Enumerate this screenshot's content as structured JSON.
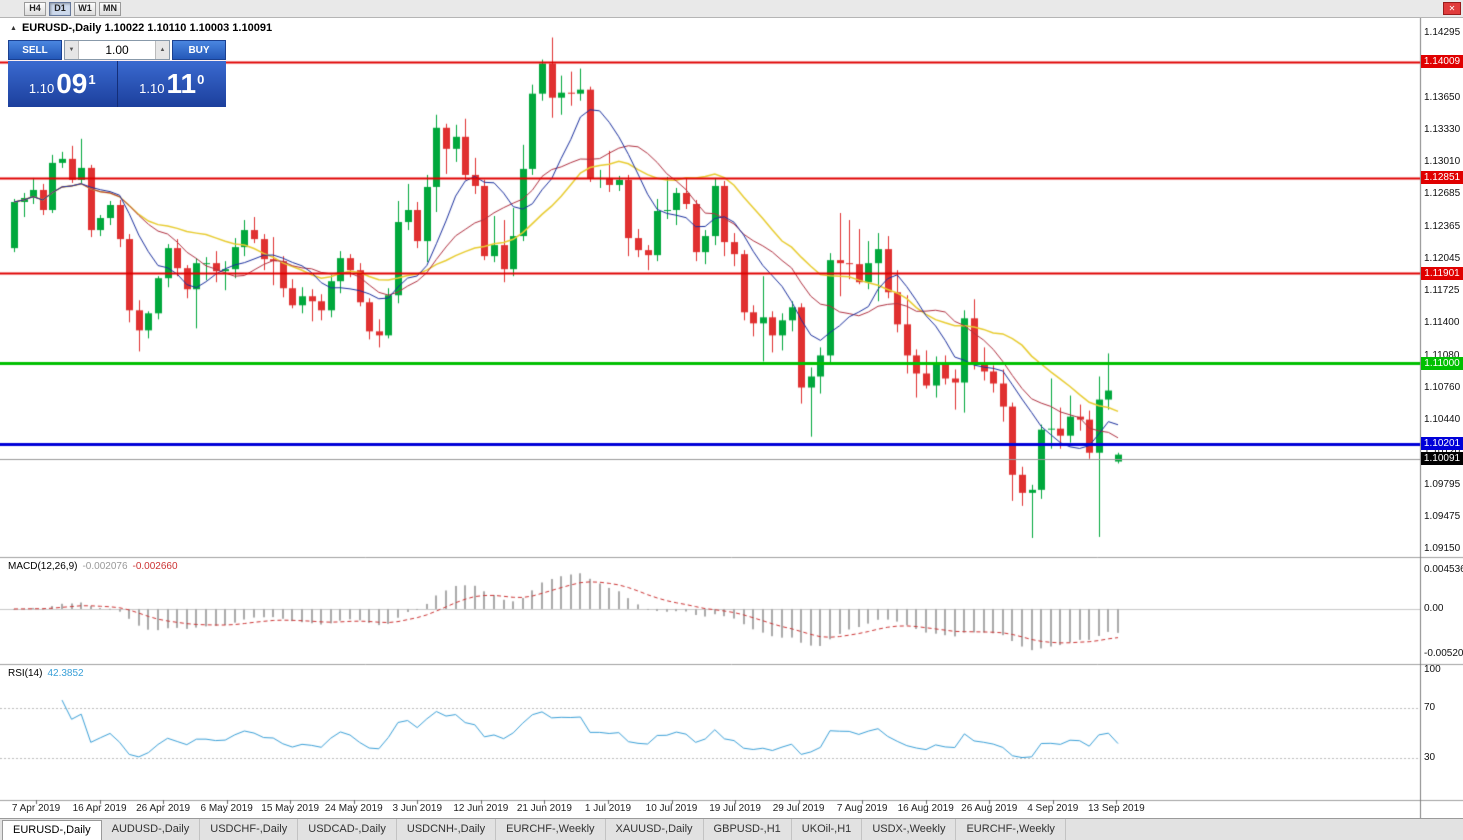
{
  "toolbar": {
    "timeframes": [
      {
        "label": "H4",
        "active": false
      },
      {
        "label": "D1",
        "active": true
      },
      {
        "label": "W1",
        "active": false
      },
      {
        "label": "MN",
        "active": false
      }
    ]
  },
  "icons": {
    "close": "✕",
    "collapse": "▲",
    "spin_up": "▲",
    "spin_down": "▼"
  },
  "chart": {
    "title_text": "EURUSD-,Daily 1.10022 1.10110 1.10003 1.10091"
  },
  "one_click": {
    "sell_label": "SELL",
    "buy_label": "BUY",
    "volume": "1.00",
    "sell_prefix": "1.10",
    "sell_big": "09",
    "sell_sup": "1",
    "buy_prefix": "1.10",
    "buy_big": "11",
    "buy_sup": "0"
  },
  "price_scale": [
    "1.14295",
    "1.13985",
    "1.13650",
    "1.13330",
    "1.13010",
    "1.12685",
    "1.12365",
    "1.12045",
    "1.11725",
    "1.11400",
    "1.11080",
    "1.10760",
    "1.10440",
    "1.10120",
    "1.09795",
    "1.09475",
    "1.09150"
  ],
  "hlines": [
    {
      "label": "1.14009",
      "price": 1.14009,
      "color": "#e00000",
      "width": 2
    },
    {
      "label": "1.12851",
      "price": 1.12851,
      "color": "#e00000",
      "width": 2
    },
    {
      "label": "1.11901",
      "price": 1.11901,
      "color": "#e00000",
      "width": 2
    },
    {
      "label": "1.11000",
      "price": 1.11,
      "color": "#00c000",
      "width": 3
    },
    {
      "label": "1.10201",
      "price": 1.10201,
      "color": "#0000d8",
      "width": 3
    }
  ],
  "current_price": {
    "label": "1.10091",
    "price": 1.10091
  },
  "macd": {
    "label": "MACD(12,26,9)",
    "value_main": "-0.002076",
    "value_signal": "-0.002660",
    "scale": [
      {
        "label": "0.004536",
        "value": 0.004536
      },
      {
        "label": "0.00",
        "value": 0
      },
      {
        "label": "-0.005205",
        "value": -0.005205
      }
    ]
  },
  "rsi": {
    "label": "RSI(14)",
    "value": "42.3852",
    "scale": [
      {
        "label": "100",
        "value": 100
      },
      {
        "label": "70",
        "value": 70
      },
      {
        "label": "30",
        "value": 30
      }
    ],
    "levels": [
      70,
      30
    ]
  },
  "dates": [
    "7 Apr 2019",
    "16 Apr 2019",
    "26 Apr 2019",
    "6 May 2019",
    "15 May 2019",
    "24 May 2019",
    "3 Jun 2019",
    "12 Jun 2019",
    "21 Jun 2019",
    "1 Jul 2019",
    "10 Jul 2019",
    "19 Jul 2019",
    "29 Jul 2019",
    "7 Aug 2019",
    "16 Aug 2019",
    "26 Aug 2019",
    "4 Sep 2019",
    "13 Sep 2019"
  ],
  "tabs": [
    {
      "label": "EURUSD-,Daily",
      "active": true
    },
    {
      "label": "AUDUSD-,Daily",
      "active": false
    },
    {
      "label": "USDCHF-,Daily",
      "active": false
    },
    {
      "label": "USDCAD-,Daily",
      "active": false
    },
    {
      "label": "USDCNH-,Daily",
      "active": false
    },
    {
      "label": "EURCHF-,Weekly",
      "active": false
    },
    {
      "label": "XAUUSD-,Daily",
      "active": false
    },
    {
      "label": "GBPUSD-,H1",
      "active": false
    },
    {
      "label": "UKOil-,H1",
      "active": false
    },
    {
      "label": "USDX-,Weekly",
      "active": false
    },
    {
      "label": "EURCHF-,Weekly",
      "active": false
    }
  ],
  "colors": {
    "bull": "#00a83c",
    "bear": "#e03030",
    "ma_fast": "#1a2f9e",
    "ma_mid": "#b03040",
    "ma_slow": "#e8cc30",
    "macd_hist": "#aaaaaa",
    "macd_signal": "#cc3333",
    "rsi_line": "#3aa0d8",
    "panel_blue": "#2b5bb8",
    "current_line": "#999999",
    "current_badge": "#000000"
  },
  "chart_data": {
    "type": "candlestick",
    "symbol": "EURUSD-",
    "timeframe": "Daily",
    "y_range": [
      1.0915,
      1.14295
    ],
    "ma_periods": [
      8,
      13,
      21
    ],
    "indicators": [
      "MACD(12,26,9)",
      "RSI(14)"
    ],
    "ohlc": [
      [
        1.1215,
        1.1264,
        1.1211,
        1.1261
      ],
      [
        1.1261,
        1.127,
        1.1246,
        1.1265
      ],
      [
        1.1265,
        1.1285,
        1.1259,
        1.1273
      ],
      [
        1.1273,
        1.1279,
        1.1248,
        1.1253
      ],
      [
        1.1253,
        1.1308,
        1.125,
        1.13
      ],
      [
        1.13,
        1.1311,
        1.1295,
        1.1304
      ],
      [
        1.1304,
        1.1317,
        1.128,
        1.1283
      ],
      [
        1.1283,
        1.1324,
        1.128,
        1.1295
      ],
      [
        1.1295,
        1.1298,
        1.1226,
        1.1233
      ],
      [
        1.1233,
        1.1248,
        1.1227,
        1.1245
      ],
      [
        1.1245,
        1.1262,
        1.1238,
        1.1258
      ],
      [
        1.1258,
        1.1263,
        1.1216,
        1.1224
      ],
      [
        1.1224,
        1.1229,
        1.1141,
        1.1153
      ],
      [
        1.1153,
        1.1163,
        1.1112,
        1.1133
      ],
      [
        1.1133,
        1.1152,
        1.1125,
        1.115
      ],
      [
        1.115,
        1.1187,
        1.1144,
        1.1185
      ],
      [
        1.1185,
        1.1219,
        1.1176,
        1.1215
      ],
      [
        1.1215,
        1.1224,
        1.1187,
        1.1195
      ],
      [
        1.1195,
        1.1198,
        1.1165,
        1.1174
      ],
      [
        1.1174,
        1.1205,
        1.1135,
        1.12
      ],
      [
        1.12,
        1.1206,
        1.1183,
        1.12
      ],
      [
        1.12,
        1.1212,
        1.1181,
        1.1192
      ],
      [
        1.1192,
        1.1202,
        1.1173,
        1.1194
      ],
      [
        1.1194,
        1.1225,
        1.1185,
        1.1216
      ],
      [
        1.1216,
        1.1243,
        1.1207,
        1.1233
      ],
      [
        1.1233,
        1.1246,
        1.122,
        1.1224
      ],
      [
        1.1224,
        1.1229,
        1.1193,
        1.1204
      ],
      [
        1.1204,
        1.1226,
        1.1178,
        1.1202
      ],
      [
        1.1202,
        1.1207,
        1.1166,
        1.1175
      ],
      [
        1.1175,
        1.1184,
        1.1155,
        1.1158
      ],
      [
        1.1158,
        1.1176,
        1.115,
        1.1167
      ],
      [
        1.1167,
        1.1174,
        1.1142,
        1.1162
      ],
      [
        1.1162,
        1.1169,
        1.1143,
        1.1153
      ],
      [
        1.1153,
        1.1188,
        1.1146,
        1.1182
      ],
      [
        1.1182,
        1.1212,
        1.117,
        1.1205
      ],
      [
        1.1205,
        1.1209,
        1.1186,
        1.1193
      ],
      [
        1.1193,
        1.12,
        1.1157,
        1.1161
      ],
      [
        1.1161,
        1.1165,
        1.1124,
        1.1132
      ],
      [
        1.1132,
        1.1144,
        1.1116,
        1.1128
      ],
      [
        1.1128,
        1.1175,
        1.1125,
        1.1168
      ],
      [
        1.1168,
        1.1262,
        1.116,
        1.1241
      ],
      [
        1.1241,
        1.1279,
        1.1233,
        1.1253
      ],
      [
        1.1253,
        1.1261,
        1.1215,
        1.1222
      ],
      [
        1.1222,
        1.1288,
        1.1201,
        1.1276
      ],
      [
        1.1276,
        1.1348,
        1.1251,
        1.1335
      ],
      [
        1.1335,
        1.1339,
        1.1289,
        1.1314
      ],
      [
        1.1314,
        1.1338,
        1.1301,
        1.1326
      ],
      [
        1.1326,
        1.1344,
        1.1283,
        1.1288
      ],
      [
        1.1288,
        1.1305,
        1.1269,
        1.1277
      ],
      [
        1.1277,
        1.1283,
        1.1203,
        1.1207
      ],
      [
        1.1207,
        1.1247,
        1.1201,
        1.1218
      ],
      [
        1.1218,
        1.1243,
        1.1181,
        1.1194
      ],
      [
        1.1194,
        1.1255,
        1.1187,
        1.1227
      ],
      [
        1.1227,
        1.1318,
        1.1222,
        1.1294
      ],
      [
        1.1294,
        1.1378,
        1.1288,
        1.1369
      ],
      [
        1.1369,
        1.1403,
        1.1362,
        1.1399
      ],
      [
        1.1399,
        1.1425,
        1.1345,
        1.1365
      ],
      [
        1.1365,
        1.1387,
        1.1348,
        1.137
      ],
      [
        1.137,
        1.1391,
        1.1357,
        1.1369
      ],
      [
        1.1369,
        1.1394,
        1.1362,
        1.1373
      ],
      [
        1.1373,
        1.1376,
        1.1281,
        1.1285
      ],
      [
        1.1285,
        1.1293,
        1.1275,
        1.1285
      ],
      [
        1.1285,
        1.1312,
        1.1271,
        1.1278
      ],
      [
        1.1278,
        1.1287,
        1.1272,
        1.1283
      ],
      [
        1.1283,
        1.1288,
        1.1207,
        1.1225
      ],
      [
        1.1225,
        1.1234,
        1.1206,
        1.1213
      ],
      [
        1.1213,
        1.1218,
        1.1193,
        1.1208
      ],
      [
        1.1208,
        1.1264,
        1.1202,
        1.1252
      ],
      [
        1.1252,
        1.1286,
        1.1244,
        1.1253
      ],
      [
        1.1253,
        1.1275,
        1.1238,
        1.127
      ],
      [
        1.127,
        1.1284,
        1.1254,
        1.1259
      ],
      [
        1.1259,
        1.1263,
        1.1202,
        1.1211
      ],
      [
        1.1211,
        1.1233,
        1.1199,
        1.1227
      ],
      [
        1.1227,
        1.1285,
        1.1218,
        1.1277
      ],
      [
        1.1277,
        1.1282,
        1.1207,
        1.1221
      ],
      [
        1.1221,
        1.123,
        1.1197,
        1.1209
      ],
      [
        1.1209,
        1.1213,
        1.1143,
        1.1151
      ],
      [
        1.1151,
        1.1158,
        1.1127,
        1.114
      ],
      [
        1.114,
        1.1187,
        1.1102,
        1.1146
      ],
      [
        1.1146,
        1.1152,
        1.1111,
        1.1128
      ],
      [
        1.1128,
        1.115,
        1.1113,
        1.1143
      ],
      [
        1.1143,
        1.1162,
        1.1132,
        1.1156
      ],
      [
        1.1156,
        1.116,
        1.106,
        1.1076
      ],
      [
        1.1076,
        1.1096,
        1.1027,
        1.1087
      ],
      [
        1.1087,
        1.1116,
        1.107,
        1.1108
      ],
      [
        1.1108,
        1.121,
        1.11,
        1.1203
      ],
      [
        1.1203,
        1.125,
        1.1167,
        1.12
      ],
      [
        1.12,
        1.1243,
        1.1184,
        1.1199
      ],
      [
        1.1199,
        1.1234,
        1.1179,
        1.1181
      ],
      [
        1.1181,
        1.1222,
        1.1174,
        1.12
      ],
      [
        1.12,
        1.123,
        1.1162,
        1.1214
      ],
      [
        1.1214,
        1.1227,
        1.1165,
        1.1171
      ],
      [
        1.1171,
        1.1193,
        1.1131,
        1.1139
      ],
      [
        1.1139,
        1.1168,
        1.109,
        1.1108
      ],
      [
        1.1108,
        1.1114,
        1.1066,
        1.109
      ],
      [
        1.109,
        1.1113,
        1.1075,
        1.1078
      ],
      [
        1.1078,
        1.1107,
        1.1066,
        1.1099
      ],
      [
        1.1099,
        1.1108,
        1.1079,
        1.1085
      ],
      [
        1.1085,
        1.1094,
        1.1054,
        1.1081
      ],
      [
        1.1081,
        1.1153,
        1.1051,
        1.1145
      ],
      [
        1.1145,
        1.1164,
        1.1094,
        1.1101
      ],
      [
        1.1101,
        1.1116,
        1.1083,
        1.1092
      ],
      [
        1.1092,
        1.1098,
        1.1071,
        1.108
      ],
      [
        1.108,
        1.1094,
        1.1042,
        1.1057
      ],
      [
        1.1057,
        1.1061,
        1.0963,
        1.0989
      ],
      [
        1.0989,
        1.0997,
        1.0958,
        1.0971
      ],
      [
        1.0971,
        1.0979,
        1.0926,
        1.0974
      ],
      [
        1.0974,
        1.1039,
        1.0965,
        1.1034
      ],
      [
        1.1034,
        1.1085,
        1.1015,
        1.1035
      ],
      [
        1.1035,
        1.1056,
        1.1015,
        1.1028
      ],
      [
        1.1028,
        1.1068,
        1.1021,
        1.1047
      ],
      [
        1.1047,
        1.1059,
        1.1033,
        1.1044
      ],
      [
        1.1044,
        1.1053,
        1.1005,
        1.1011
      ],
      [
        1.1011,
        1.1087,
        1.0927,
        1.1064
      ],
      [
        1.1064,
        1.111,
        1.1054,
        1.1073
      ],
      [
        1.10022,
        1.1011,
        1.10003,
        1.10091
      ]
    ]
  }
}
